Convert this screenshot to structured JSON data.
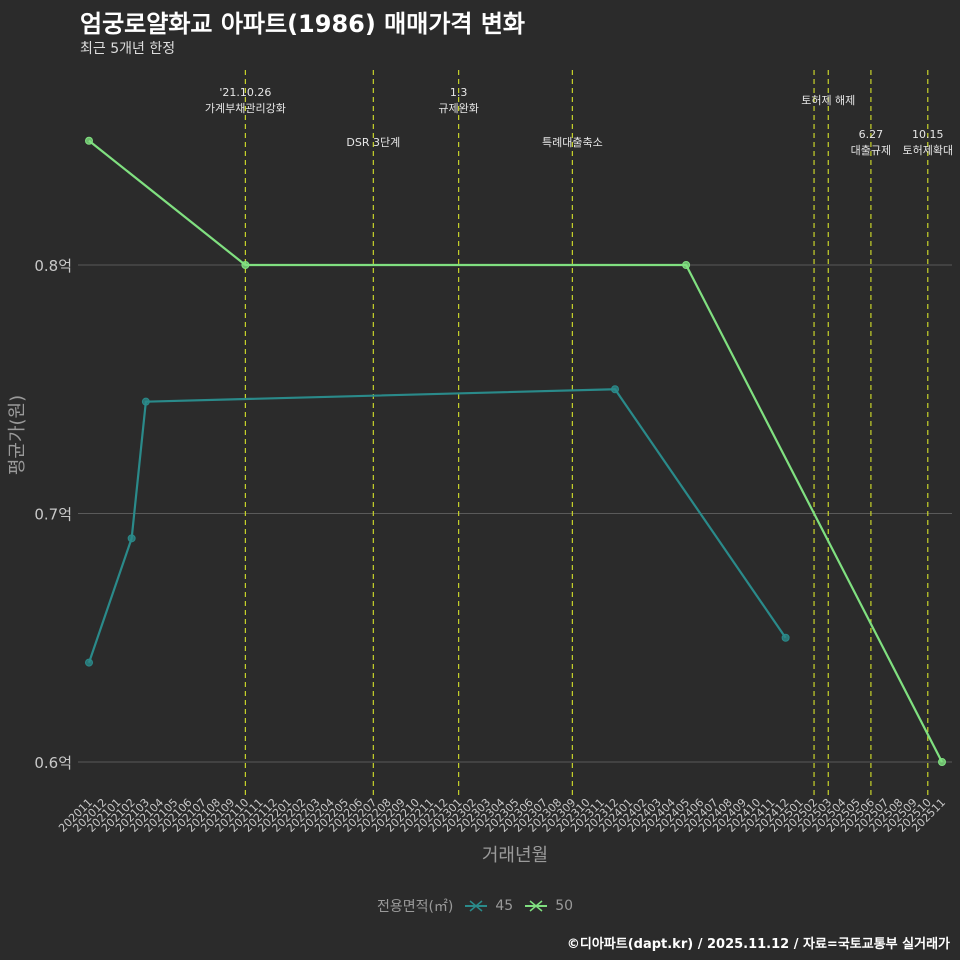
{
  "title": "엄궁로얄화교 아파트(1986) 매매가격 변화",
  "subtitle": "최근 5개년 한정",
  "caption": "©디아파트(dapt.kr) / 2025.11.12 / 자료=국토교통부 실거래가",
  "colors": {
    "background": "#2b2b2b",
    "grid": "#5a5a5a",
    "axis_text": "#c8c8c8",
    "event_line": "#c8d42a",
    "series_45": "#2a8a8a",
    "series_50": "#80e080"
  },
  "chart_data": {
    "type": "line",
    "title": "엄궁로얄화교 아파트(1986) 매매가격 변화",
    "subtitle": "최근 5개년 한정",
    "xlabel": "거래년월",
    "ylabel": "평균가(원)",
    "ylim": [
      0.59,
      0.86
    ],
    "yticks": [
      0.6,
      0.7,
      0.8
    ],
    "ytick_labels": [
      "0.6억",
      "0.7억",
      "0.8억"
    ],
    "categories": [
      "202011",
      "202012",
      "202101",
      "202102",
      "202103",
      "202104",
      "202105",
      "202106",
      "202107",
      "202108",
      "202109",
      "202110",
      "202111",
      "202112",
      "202201",
      "202202",
      "202203",
      "202204",
      "202205",
      "202206",
      "202207",
      "202208",
      "202209",
      "202210",
      "202211",
      "202212",
      "202301",
      "202302",
      "202303",
      "202304",
      "202305",
      "202306",
      "202307",
      "202308",
      "202309",
      "202310",
      "202311",
      "202312",
      "202401",
      "202402",
      "202403",
      "202404",
      "202405",
      "202406",
      "202407",
      "202408",
      "202409",
      "202410",
      "202411",
      "202412",
      "202501",
      "202502",
      "202503",
      "202504",
      "202505",
      "202506",
      "202507",
      "202508",
      "202509",
      "202510",
      "202511"
    ],
    "legend_title": "전용면적(㎡)",
    "series": [
      {
        "name": "45",
        "color": "#2a8a8a",
        "points": [
          {
            "x": "202011",
            "y": 0.64
          },
          {
            "x": "202102",
            "y": 0.69
          },
          {
            "x": "202103",
            "y": 0.745
          },
          {
            "x": "202312",
            "y": 0.75
          },
          {
            "x": "202412",
            "y": 0.65
          }
        ]
      },
      {
        "name": "50",
        "color": "#80e080",
        "points": [
          {
            "x": "202011",
            "y": 0.85
          },
          {
            "x": "202110",
            "y": 0.8
          },
          {
            "x": "202405",
            "y": 0.8
          },
          {
            "x": "202511",
            "y": 0.6
          }
        ]
      }
    ],
    "events": [
      {
        "x": "202110",
        "lines": [
          "'21.10.26",
          "가계부채관리강화"
        ],
        "level": 0
      },
      {
        "x": "202207",
        "lines": [
          "DSR 3단계"
        ],
        "level": 1
      },
      {
        "x": "202301",
        "lines": [
          "1.3",
          "규제완화"
        ],
        "level": 0
      },
      {
        "x": "202309",
        "lines": [
          "특례대출축소"
        ],
        "level": 1
      },
      {
        "x": "202502",
        "lines": [],
        "level": 0
      },
      {
        "x": "202503",
        "lines": [
          "토허제 해제"
        ],
        "level": 0
      },
      {
        "x": "202506",
        "lines": [
          "6.27",
          "대출규제"
        ],
        "level": 2
      },
      {
        "x": "202510",
        "lines": [
          "10.15",
          "토허제확대"
        ],
        "level": 2
      }
    ]
  }
}
